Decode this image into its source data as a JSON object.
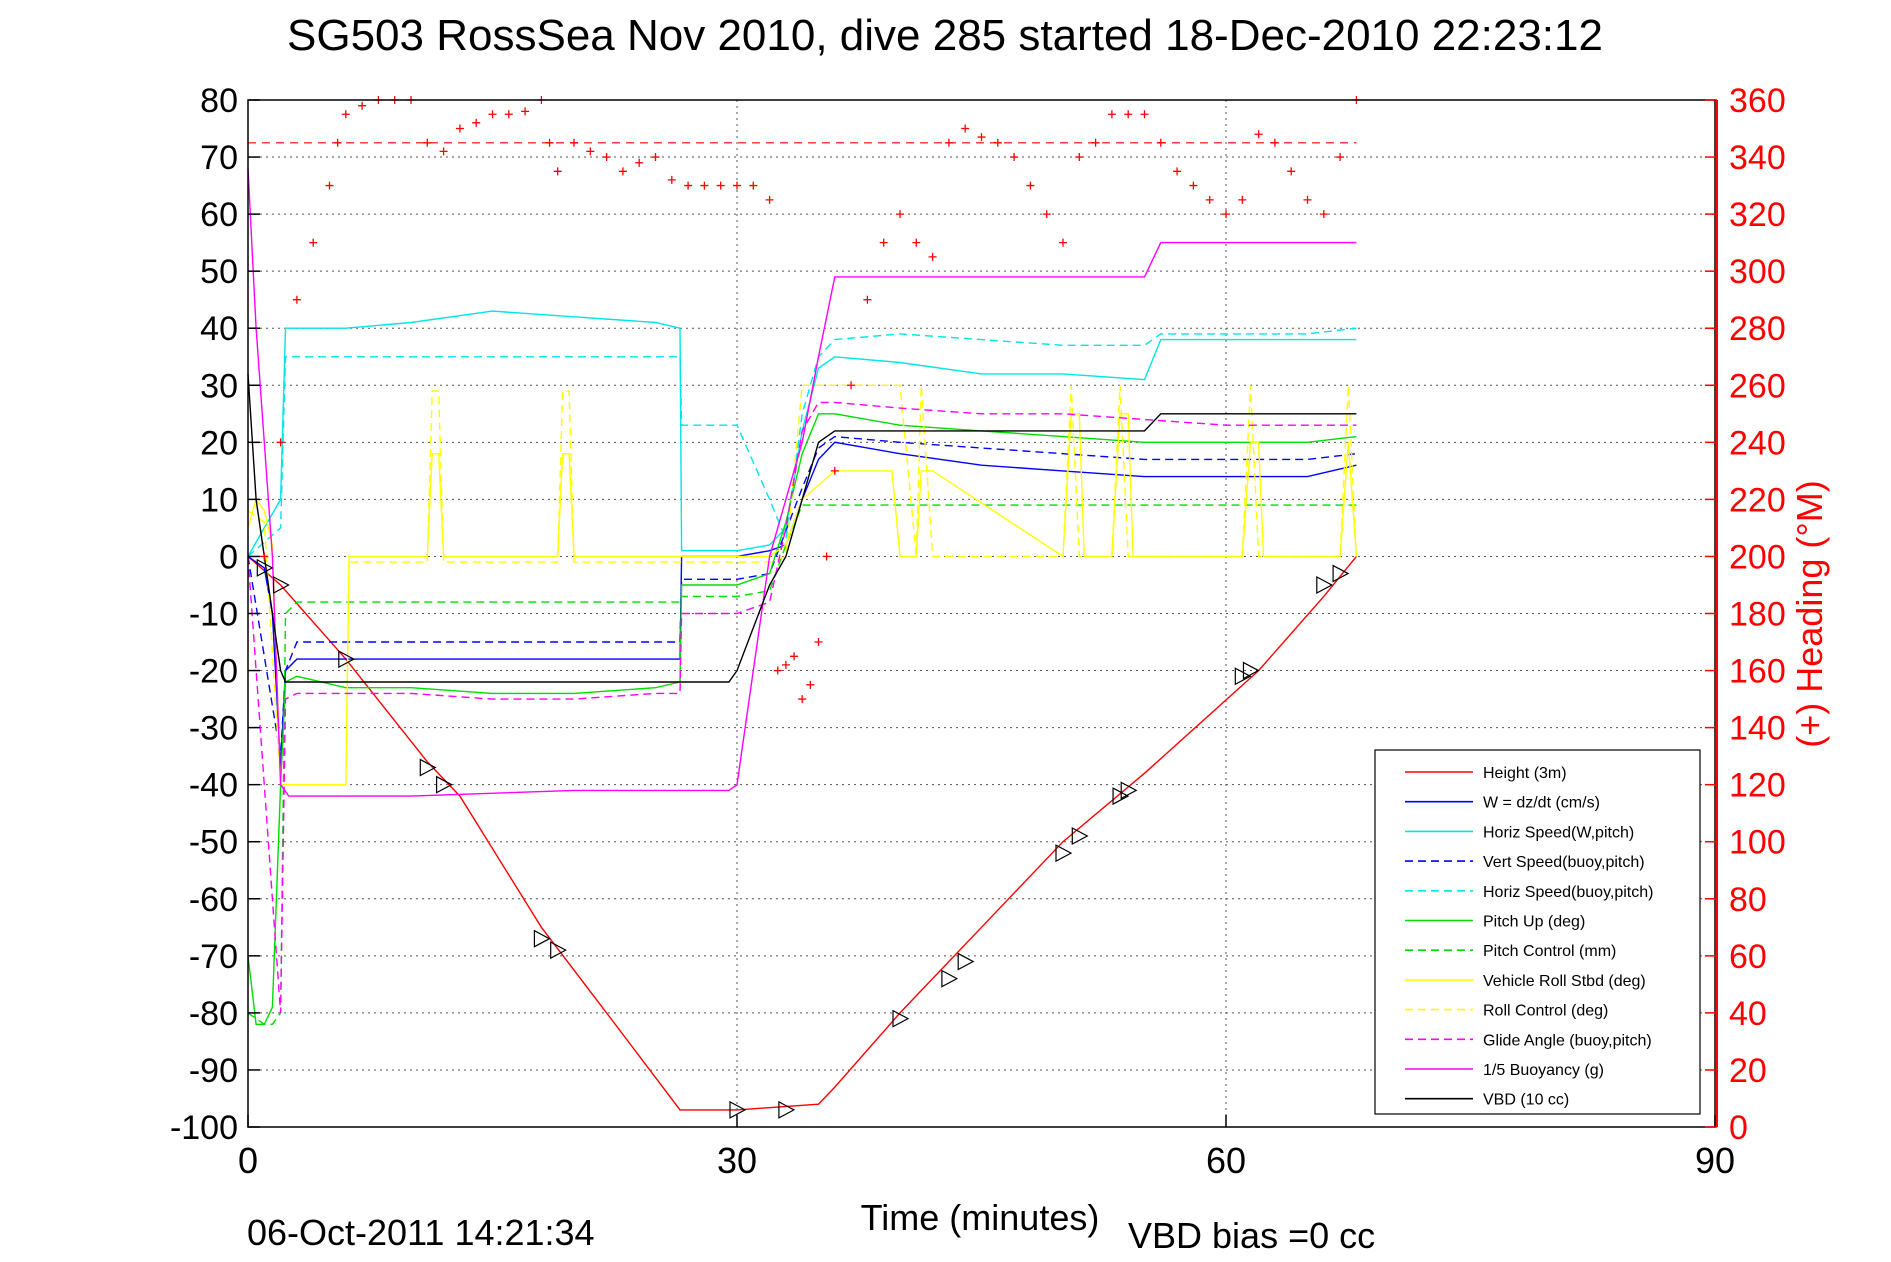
{
  "chart_data": {
    "type": "line",
    "title": "SG503 RossSea Nov 2010, dive 285 started 18-Dec-2010 22:23:12",
    "xlabel": "Time (minutes)",
    "ylabel_right": "(+) Heading (°M)",
    "footer_date": "06-Oct-2011 14:21:34",
    "footer_bias": "VBD bias =0 cc",
    "xlim": [
      0,
      90
    ],
    "ylim_left": [
      -100,
      80
    ],
    "ylim_right": [
      0,
      360
    ],
    "xticks": [
      0,
      30,
      60,
      90
    ],
    "yticks_left": [
      80,
      70,
      60,
      50,
      40,
      30,
      20,
      10,
      0,
      -10,
      -20,
      -30,
      -40,
      -50,
      -60,
      -70,
      -80,
      -90,
      -100
    ],
    "yticks_right": [
      360,
      340,
      320,
      300,
      280,
      260,
      240,
      220,
      200,
      180,
      160,
      140,
      120,
      100,
      80,
      60,
      40,
      20,
      0
    ],
    "grid": true,
    "legend_position": "bottom-right",
    "heading_reference": 345,
    "series": [
      {
        "name": "Height (3m)",
        "color": "#ff0000",
        "style": "solid",
        "x": [
          0,
          2,
          6,
          11,
          13,
          18,
          22,
          26.5,
          30,
          35,
          36,
          40,
          45,
          50,
          55,
          62,
          66,
          68
        ],
        "y": [
          0,
          -5,
          -18,
          -36,
          -42,
          -65,
          -80,
          -97,
          -97,
          -96,
          -93,
          -80,
          -65,
          -50,
          -38,
          -20,
          -7,
          0
        ]
      },
      {
        "name": "W = dz/dt (cm/s)",
        "color": "#0000ff",
        "style": "solid",
        "x": [
          0,
          1,
          1.5,
          2,
          2.3,
          3,
          6,
          10,
          15,
          20,
          25,
          26.5,
          26.6,
          30,
          32,
          33,
          34,
          35,
          36,
          40,
          45,
          50,
          55,
          60,
          65,
          68
        ],
        "y": [
          0,
          -2,
          -10,
          -37,
          -20,
          -18,
          -18,
          -18,
          -18,
          -18,
          -18,
          -18,
          0,
          0,
          1,
          2,
          10,
          17,
          20,
          18,
          16,
          15,
          14,
          14,
          14,
          16
        ]
      },
      {
        "name": "Horiz Speed(W,pitch)",
        "color": "#00e5e5",
        "style": "solid",
        "x": [
          0,
          1,
          2,
          2.3,
          3,
          6,
          10,
          15,
          20,
          25,
          26.5,
          26.6,
          30,
          32,
          33,
          34,
          35,
          36,
          40,
          45,
          50,
          55,
          56,
          60,
          65,
          68
        ],
        "y": [
          0,
          5,
          10,
          40,
          40,
          40,
          41,
          43,
          42,
          41,
          40,
          1,
          1,
          2,
          5,
          22,
          33,
          35,
          34,
          32,
          32,
          31,
          38,
          38,
          38,
          38
        ]
      },
      {
        "name": "Vert Speed(buoy,pitch)",
        "color": "#0000ff",
        "style": "dashed",
        "x": [
          0,
          2,
          2.3,
          3,
          6,
          10,
          15,
          20,
          25,
          26.5,
          26.6,
          30,
          32,
          34,
          35,
          36,
          40,
          45,
          50,
          55,
          60,
          65,
          68
        ],
        "y": [
          0,
          -35,
          -20,
          -15,
          -15,
          -15,
          -15,
          -15,
          -15,
          -15,
          -4,
          -4,
          -3,
          12,
          19,
          21,
          20,
          19,
          18,
          17,
          17,
          17,
          18
        ]
      },
      {
        "name": "Horiz Speed(buoy,pitch)",
        "color": "#00e5e5",
        "style": "dashed",
        "x": [
          0,
          2,
          2.3,
          3,
          6,
          10,
          15,
          20,
          25,
          26.5,
          26.6,
          30,
          32,
          33,
          34,
          35,
          36,
          40,
          45,
          50,
          55,
          56,
          60,
          65,
          68
        ],
        "y": [
          0,
          5,
          35,
          35,
          35,
          35,
          35,
          35,
          35,
          35,
          23,
          23,
          10,
          3,
          25,
          35,
          38,
          39,
          38,
          37,
          37,
          39,
          39,
          39,
          40
        ]
      },
      {
        "name": "Pitch Up (deg)",
        "color": "#00dd00",
        "style": "solid",
        "x": [
          0,
          0.5,
          1,
          1.5,
          2,
          2.3,
          3,
          6,
          10,
          15,
          20,
          25,
          26.5,
          26.6,
          30,
          32,
          33,
          34,
          35,
          36,
          40,
          45,
          50,
          55,
          60,
          65,
          68
        ],
        "y": [
          -70,
          -82,
          -82,
          -79,
          -40,
          -22,
          -21,
          -23,
          -23,
          -24,
          -24,
          -23,
          -22,
          -5,
          -5,
          -3,
          6,
          18,
          25,
          25,
          23,
          22,
          21,
          20,
          20,
          20,
          21
        ]
      },
      {
        "name": "Pitch Control (mm)",
        "color": "#00dd00",
        "style": "dashed",
        "x": [
          0,
          1,
          1.5,
          2,
          2.3,
          3,
          6,
          10,
          15,
          20,
          25,
          26.5,
          26.6,
          30,
          32,
          33,
          34,
          35,
          36,
          40,
          45,
          50,
          55,
          60,
          65,
          68
        ],
        "y": [
          -80,
          -82,
          -82,
          -80,
          -10,
          -8,
          -8,
          -8,
          -8,
          -8,
          -8,
          -8,
          -7,
          -7,
          -6,
          2,
          9,
          9,
          9,
          9,
          9,
          9,
          9,
          9,
          9,
          9
        ]
      },
      {
        "name": "Vehicle Roll Stbd (deg)",
        "color": "#ffff00",
        "style": "solid",
        "x": [
          0,
          0.5,
          1,
          1.5,
          2,
          6,
          6.2,
          11,
          11.3,
          11.7,
          12,
          19,
          19.3,
          19.7,
          20,
          26.5,
          30,
          32,
          33,
          34,
          36,
          39.5,
          40,
          41,
          41.3,
          42,
          50,
          50.5,
          51,
          51.3,
          53,
          53.5,
          54,
          54.3,
          61,
          61.5,
          62,
          62.3,
          67,
          67.5,
          68
        ],
        "y": [
          5,
          10,
          8,
          2,
          -40,
          -40,
          0,
          0,
          18,
          18,
          0,
          0,
          18,
          18,
          0,
          0,
          0,
          0,
          2,
          10,
          15,
          15,
          0,
          0,
          15,
          15,
          0,
          25,
          25,
          0,
          0,
          25,
          25,
          0,
          0,
          20,
          20,
          0,
          0,
          20,
          0
        ]
      },
      {
        "name": "Roll Control (deg)",
        "color": "#ffff00",
        "style": "dashed",
        "x": [
          0,
          1,
          2,
          6,
          6.2,
          11,
          11.3,
          11.7,
          12,
          19,
          19.3,
          19.7,
          20,
          26.5,
          30,
          32,
          33,
          34,
          36,
          40,
          41,
          41.3,
          42,
          50,
          50.5,
          51,
          53,
          53.5,
          54,
          61,
          61.5,
          62,
          67,
          67.5,
          68
        ],
        "y": [
          8,
          6,
          -40,
          -40,
          -1,
          -1,
          29,
          29,
          -1,
          -1,
          29,
          29,
          -1,
          -1,
          -1,
          -1,
          0,
          30,
          30,
          30,
          0,
          30,
          0,
          0,
          30,
          0,
          0,
          30,
          0,
          0,
          30,
          0,
          0,
          30,
          0
        ]
      },
      {
        "name": "Glide Angle (buoy,pitch)",
        "color": "#ff00ff",
        "style": "dashed",
        "x": [
          0,
          1.5,
          2,
          2.3,
          3,
          6,
          10,
          15,
          20,
          25,
          26.5,
          26.6,
          30,
          32,
          33,
          34,
          35,
          36,
          40,
          45,
          50,
          55,
          60,
          65,
          68
        ],
        "y": [
          0,
          -60,
          -80,
          -25,
          -24,
          -24,
          -24,
          -25,
          -25,
          -24,
          -24,
          -10,
          -10,
          -8,
          5,
          22,
          27,
          27,
          26,
          25,
          25,
          24,
          23,
          23,
          23
        ]
      },
      {
        "name": "1/5 Buoyancy (g)",
        "color": "#ff00ff",
        "style": "solid",
        "x": [
          0,
          0.5,
          1,
          1.5,
          2,
          2.5,
          3,
          10,
          20,
          29.5,
          30,
          32,
          34,
          35,
          36,
          40,
          45,
          50,
          55,
          56,
          60,
          65,
          68
        ],
        "y": [
          68,
          40,
          20,
          0,
          -40,
          -42,
          -42,
          -42,
          -41,
          -41,
          -40,
          0,
          20,
          35,
          49,
          49,
          49,
          49,
          49,
          55,
          55,
          55,
          55
        ]
      },
      {
        "name": "VBD (10 cc)",
        "color": "#000000",
        "style": "solid",
        "x": [
          0,
          0.5,
          1,
          1.5,
          2,
          2.3,
          3,
          10,
          20,
          26.5,
          29.5,
          30,
          32,
          33,
          34,
          35,
          36,
          40,
          45,
          50,
          55,
          56,
          60,
          65,
          68
        ],
        "y": [
          32,
          10,
          0,
          -10,
          -20,
          -22,
          -22,
          -22,
          -22,
          -22,
          -22,
          -20,
          -5,
          0,
          10,
          20,
          22,
          22,
          22,
          22,
          22,
          25,
          25,
          25,
          25
        ]
      }
    ],
    "heading_points": {
      "name": "Heading",
      "color": "#ff0000",
      "x": [
        1,
        2,
        3,
        4,
        5,
        5.5,
        6,
        7,
        8,
        9,
        10,
        11,
        12,
        13,
        14,
        15,
        16,
        17,
        18,
        18.5,
        19,
        20,
        21,
        22,
        23,
        24,
        25,
        26,
        27,
        28,
        29,
        30,
        31,
        32,
        32.5,
        33,
        33.5,
        34,
        34.5,
        35,
        35.5,
        36,
        37,
        38,
        39,
        40,
        41,
        42,
        43,
        44,
        45,
        46,
        47,
        48,
        49,
        50,
        51,
        52,
        53,
        54,
        55,
        56,
        57,
        58,
        59,
        60,
        61,
        62,
        63,
        64,
        65,
        66,
        67,
        68
      ],
      "y": [
        200,
        240,
        290,
        310,
        330,
        345,
        355,
        358,
        360,
        360,
        360,
        345,
        342,
        350,
        352,
        355,
        355,
        356,
        360,
        345,
        335,
        345,
        342,
        340,
        335,
        338,
        340,
        332,
        330,
        330,
        330,
        330,
        330,
        325,
        160,
        162,
        165,
        150,
        155,
        170,
        200,
        230,
        260,
        290,
        310,
        320,
        310,
        305,
        345,
        350,
        347,
        345,
        340,
        330,
        320,
        310,
        340,
        345,
        355,
        355,
        355,
        345,
        335,
        330,
        325,
        320,
        325,
        348,
        345,
        335,
        325,
        320,
        340,
        360
      ]
    },
    "dive_marker_points": {
      "x": [
        1,
        2,
        6,
        11,
        12,
        18,
        19,
        30,
        33,
        40,
        43,
        44,
        50,
        51,
        53.5,
        54,
        61,
        61.5,
        66,
        67
      ],
      "y": [
        -2,
        -5,
        -18,
        -37,
        -40,
        -67,
        -69,
        -97,
        -97,
        -81,
        -74,
        -71,
        -52,
        -49,
        -42,
        -41,
        -21,
        -20,
        -5,
        -3
      ]
    },
    "legend": [
      {
        "label": "Height (3m)",
        "color": "#ff0000",
        "style": "solid"
      },
      {
        "label": "W = dz/dt (cm/s)",
        "color": "#0000ff",
        "style": "solid"
      },
      {
        "label": "Horiz Speed(W,pitch)",
        "color": "#00e5e5",
        "style": "solid"
      },
      {
        "label": "Vert Speed(buoy,pitch)",
        "color": "#0000ff",
        "style": "dashed"
      },
      {
        "label": "Horiz Speed(buoy,pitch)",
        "color": "#00e5e5",
        "style": "dashed"
      },
      {
        "label": "Pitch Up (deg)",
        "color": "#00dd00",
        "style": "solid"
      },
      {
        "label": "Pitch Control (mm)",
        "color": "#00dd00",
        "style": "dashed"
      },
      {
        "label": "Vehicle Roll Stbd (deg)",
        "color": "#ffff00",
        "style": "solid"
      },
      {
        "label": "Roll Control (deg)",
        "color": "#ffff00",
        "style": "dashed"
      },
      {
        "label": "Glide Angle (buoy,pitch)",
        "color": "#ff00ff",
        "style": "dashed"
      },
      {
        "label": "1/5 Buoyancy (g)",
        "color": "#ff00ff",
        "style": "solid"
      },
      {
        "label": "VBD (10 cc)",
        "color": "#000000",
        "style": "solid"
      }
    ]
  }
}
